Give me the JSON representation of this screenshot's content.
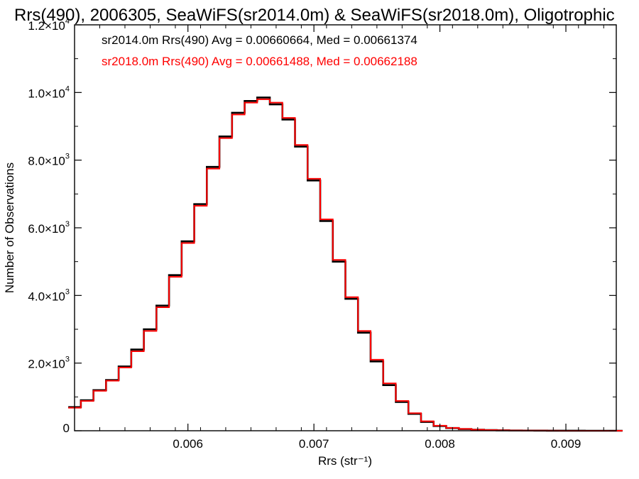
{
  "chart_data": {
    "type": "line",
    "style": "step-histogram",
    "title": "Rrs(490), 2006305, SeaWiFS(sr2014.0m) & SeaWiFS(sr2018.0m), Oligotrophic",
    "xlabel": "Rrs (str⁻¹)",
    "ylabel": "Number of Observations",
    "xlim": [
      0.0051,
      0.0094
    ],
    "ylim": [
      0,
      12000
    ],
    "x_ticks": [
      {
        "value": 0.006,
        "label": "0.006"
      },
      {
        "value": 0.007,
        "label": "0.007"
      },
      {
        "value": 0.008,
        "label": "0.008"
      },
      {
        "value": 0.009,
        "label": "0.009"
      }
    ],
    "y_ticks": [
      {
        "value": 0,
        "mant": "0",
        "exp": ""
      },
      {
        "value": 2000,
        "mant": "2.0×10",
        "exp": "3"
      },
      {
        "value": 4000,
        "mant": "4.0×10",
        "exp": "3"
      },
      {
        "value": 6000,
        "mant": "6.0×10",
        "exp": "3"
      },
      {
        "value": 8000,
        "mant": "8.0×10",
        "exp": "3"
      },
      {
        "value": 10000,
        "mant": "1.0×10",
        "exp": "4"
      },
      {
        "value": 12000,
        "mant": "1.2×10",
        "exp": "4"
      }
    ],
    "series": [
      {
        "color": "#000000",
        "annotation": "sr2014.0m Rrs(490) Avg = 0.00660664, Med = 0.00661374",
        "x": [
          0.0051,
          0.0052,
          0.0053,
          0.0054,
          0.0055,
          0.0056,
          0.0057,
          0.0058,
          0.0059,
          0.006,
          0.0061,
          0.0062,
          0.0063,
          0.0064,
          0.0065,
          0.0066,
          0.0067,
          0.0068,
          0.0069,
          0.007,
          0.0071,
          0.0072,
          0.0073,
          0.0074,
          0.0075,
          0.0076,
          0.0077,
          0.0078,
          0.0079,
          0.008,
          0.0081,
          0.0082,
          0.0083,
          0.0084,
          0.0085,
          0.0086,
          0.0087,
          0.0088,
          0.0089,
          0.009,
          0.0091,
          0.0092,
          0.0093,
          0.0094
        ],
        "y": [
          700,
          900,
          1200,
          1500,
          1900,
          2400,
          3000,
          3700,
          4600,
          5600,
          6700,
          7800,
          8700,
          9400,
          9750,
          9850,
          9650,
          9200,
          8400,
          7400,
          6200,
          5000,
          3900,
          2900,
          2050,
          1350,
          850,
          500,
          260,
          140,
          80,
          50,
          30,
          20,
          12,
          8,
          5,
          3,
          2,
          1,
          1,
          0,
          0,
          0
        ]
      },
      {
        "color": "#ff0000",
        "annotation": "sr2018.0m Rrs(490) Avg = 0.00661488, Med = 0.00662188",
        "x": [
          0.0051,
          0.0052,
          0.0053,
          0.0054,
          0.0055,
          0.0056,
          0.0057,
          0.0058,
          0.0059,
          0.006,
          0.0061,
          0.0062,
          0.0063,
          0.0064,
          0.0065,
          0.0066,
          0.0067,
          0.0068,
          0.0069,
          0.007,
          0.0071,
          0.0072,
          0.0073,
          0.0074,
          0.0075,
          0.0076,
          0.0077,
          0.0078,
          0.0079,
          0.008,
          0.0081,
          0.0082,
          0.0083,
          0.0084,
          0.0085,
          0.0086,
          0.0087,
          0.0088,
          0.0089,
          0.009,
          0.0091,
          0.0092,
          0.0093,
          0.0094
        ],
        "y": [
          680,
          880,
          1180,
          1480,
          1870,
          2350,
          2950,
          3650,
          4550,
          5550,
          6650,
          7750,
          8650,
          9350,
          9700,
          9800,
          9700,
          9250,
          8450,
          7450,
          6250,
          5050,
          3950,
          2950,
          2100,
          1400,
          880,
          520,
          280,
          150,
          85,
          55,
          32,
          22,
          14,
          9,
          6,
          4,
          2,
          1,
          1,
          0,
          0,
          0
        ]
      }
    ],
    "grid": false
  }
}
